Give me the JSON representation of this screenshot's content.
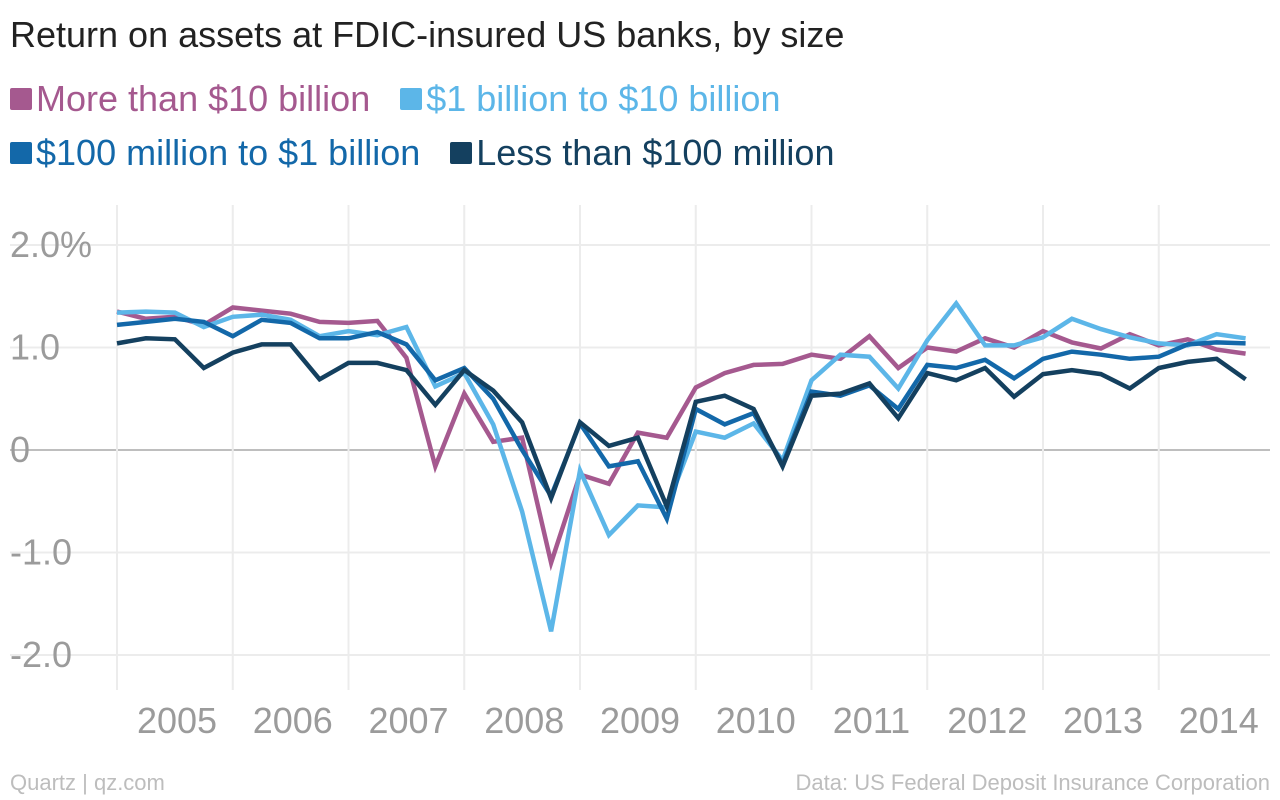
{
  "chart_data": {
    "type": "line",
    "title": "Return on assets at FDIC-insured US banks, by size",
    "xlabel": "",
    "ylabel": "",
    "x_tick_labels": [
      "2005",
      "2006",
      "2007",
      "2008",
      "2009",
      "2010",
      "2011",
      "2012",
      "2013",
      "2014"
    ],
    "y_ticks": [
      {
        "value": 2.0,
        "label": "2.0%"
      },
      {
        "value": 1.0,
        "label": "1.0"
      },
      {
        "value": 0,
        "label": "0"
      },
      {
        "value": -1.0,
        "label": "-1.0"
      },
      {
        "value": -2.0,
        "label": "-2.0"
      }
    ],
    "ylim": [
      -2.3,
      2.2
    ],
    "xlim": [
      2004.75,
      2014.9
    ],
    "grid": true,
    "legend_position": "top-left",
    "x": [
      2005.0,
      2005.25,
      2005.5,
      2005.75,
      2006.0,
      2006.25,
      2006.5,
      2006.75,
      2007.0,
      2007.25,
      2007.5,
      2007.75,
      2008.0,
      2008.25,
      2008.5,
      2008.75,
      2009.0,
      2009.25,
      2009.5,
      2009.75,
      2010.0,
      2010.25,
      2010.5,
      2010.75,
      2011.0,
      2011.25,
      2011.5,
      2011.75,
      2012.0,
      2012.25,
      2012.5,
      2012.75,
      2013.0,
      2013.25,
      2013.5,
      2013.75,
      2014.0,
      2014.25,
      2014.5,
      2014.75
    ],
    "series": [
      {
        "name": "More than $10 billion",
        "color": "#a5598f",
        "values": [
          1.35,
          1.28,
          1.3,
          1.22,
          1.39,
          1.36,
          1.33,
          1.25,
          1.24,
          1.26,
          0.9,
          -0.16,
          0.55,
          0.08,
          0.12,
          -1.1,
          -0.24,
          -0.33,
          0.17,
          0.12,
          0.61,
          0.75,
          0.83,
          0.84,
          0.93,
          0.89,
          1.11,
          0.8,
          1.0,
          0.96,
          1.09,
          1.0,
          1.16,
          1.05,
          0.99,
          1.13,
          1.02,
          1.08,
          0.98,
          0.94
        ]
      },
      {
        "name": "$1 billion to $10 billion",
        "color": "#5cb6e8",
        "values": [
          1.34,
          1.35,
          1.34,
          1.2,
          1.3,
          1.32,
          1.27,
          1.11,
          1.16,
          1.12,
          1.2,
          0.62,
          0.75,
          0.25,
          -0.6,
          -1.77,
          -0.2,
          -0.83,
          -0.54,
          -0.56,
          0.18,
          0.12,
          0.26,
          -0.1,
          0.68,
          0.93,
          0.91,
          0.6,
          1.07,
          1.43,
          1.02,
          1.02,
          1.1,
          1.28,
          1.18,
          1.1,
          1.04,
          1.02,
          1.13,
          1.09
        ]
      },
      {
        "name": "$100 million to $1 billion",
        "color": "#1368a9",
        "values": [
          1.22,
          1.25,
          1.28,
          1.25,
          1.11,
          1.27,
          1.24,
          1.09,
          1.09,
          1.15,
          1.03,
          0.68,
          0.8,
          0.5,
          0.0,
          -0.45,
          0.26,
          -0.16,
          -0.11,
          -0.67,
          0.4,
          0.25,
          0.36,
          -0.14,
          0.57,
          0.53,
          0.63,
          0.4,
          0.83,
          0.8,
          0.88,
          0.7,
          0.89,
          0.96,
          0.93,
          0.89,
          0.91,
          1.03,
          1.05,
          1.04
        ]
      },
      {
        "name": "Less than $100 million",
        "color": "#14405f",
        "values": [
          1.04,
          1.09,
          1.08,
          0.8,
          0.95,
          1.03,
          1.03,
          0.69,
          0.85,
          0.85,
          0.78,
          0.44,
          0.78,
          0.58,
          0.27,
          -0.47,
          0.27,
          0.04,
          0.12,
          -0.55,
          0.47,
          0.53,
          0.4,
          -0.16,
          0.53,
          0.55,
          0.65,
          0.31,
          0.75,
          0.68,
          0.8,
          0.52,
          0.74,
          0.78,
          0.74,
          0.6,
          0.8,
          0.86,
          0.89,
          0.69
        ]
      }
    ]
  },
  "footer": {
    "source_left": "Quartz | qz.com",
    "source_right": "Data: US Federal Deposit Insurance Corporation"
  }
}
